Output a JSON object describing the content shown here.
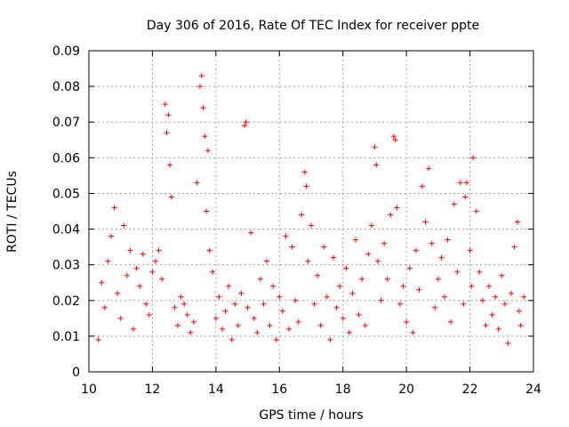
{
  "chart_data": {
    "type": "scatter",
    "title": "Day 306 of 2016, Rate Of TEC Index for receiver ppte",
    "xlabel": "GPS time / hours",
    "ylabel": "ROTI / TECUs",
    "xlim": [
      10,
      24
    ],
    "ylim": [
      0,
      0.09
    ],
    "xticks": [
      10,
      12,
      14,
      16,
      18,
      20,
      22,
      24
    ],
    "xtick_labels": [
      "10",
      "12",
      "14",
      "16",
      "18",
      "20",
      "22",
      "24"
    ],
    "yticks": [
      0,
      0.01,
      0.02,
      0.03,
      0.04,
      0.05,
      0.06,
      0.07,
      0.08,
      0.09
    ],
    "ytick_labels": [
      "0",
      "0.01",
      "0.02",
      "0.03",
      "0.04",
      "0.05",
      "0.06",
      "0.07",
      "0.08",
      "0.09"
    ],
    "grid": true,
    "marker": "plus",
    "color": "#ff0000",
    "series": [
      {
        "name": "ROTI",
        "x": [
          10.3,
          10.4,
          10.5,
          10.6,
          10.7,
          10.8,
          10.9,
          11.0,
          11.1,
          11.2,
          11.3,
          11.4,
          11.5,
          11.6,
          11.7,
          11.8,
          11.9,
          12.0,
          12.1,
          12.2,
          12.3,
          12.4,
          12.45,
          12.5,
          12.55,
          12.6,
          12.7,
          12.8,
          12.9,
          13.0,
          13.1,
          13.2,
          13.3,
          13.4,
          13.5,
          13.55,
          13.6,
          13.65,
          13.7,
          13.75,
          13.8,
          13.9,
          14.0,
          14.1,
          14.2,
          14.3,
          14.4,
          14.5,
          14.6,
          14.7,
          14.8,
          14.9,
          14.95,
          15.0,
          15.1,
          15.2,
          15.3,
          15.4,
          15.5,
          15.6,
          15.7,
          15.8,
          15.9,
          16.0,
          16.1,
          16.2,
          16.3,
          16.4,
          16.5,
          16.6,
          16.7,
          16.8,
          16.85,
          16.9,
          17.0,
          17.1,
          17.2,
          17.3,
          17.4,
          17.5,
          17.6,
          17.7,
          17.8,
          17.9,
          18.0,
          18.1,
          18.2,
          18.3,
          18.4,
          18.5,
          18.6,
          18.7,
          18.8,
          18.9,
          19.0,
          19.05,
          19.1,
          19.2,
          19.3,
          19.4,
          19.5,
          19.6,
          19.65,
          19.7,
          19.8,
          19.9,
          20.0,
          20.1,
          20.2,
          20.3,
          20.4,
          20.5,
          20.6,
          20.7,
          20.8,
          20.9,
          21.0,
          21.1,
          21.2,
          21.3,
          21.4,
          21.5,
          21.6,
          21.7,
          21.8,
          21.85,
          21.9,
          22.0,
          22.05,
          22.1,
          22.2,
          22.3,
          22.4,
          22.5,
          22.6,
          22.7,
          22.8,
          22.9,
          23.0,
          23.1,
          23.2,
          23.3,
          23.4,
          23.5,
          23.55,
          23.6,
          23.7
        ],
        "y": [
          0.009,
          0.025,
          0.018,
          0.031,
          0.038,
          0.046,
          0.022,
          0.015,
          0.041,
          0.027,
          0.034,
          0.012,
          0.029,
          0.024,
          0.033,
          0.019,
          0.016,
          0.028,
          0.031,
          0.034,
          0.026,
          0.075,
          0.067,
          0.072,
          0.058,
          0.049,
          0.018,
          0.013,
          0.021,
          0.019,
          0.016,
          0.011,
          0.014,
          0.053,
          0.08,
          0.083,
          0.074,
          0.066,
          0.045,
          0.062,
          0.034,
          0.028,
          0.015,
          0.021,
          0.012,
          0.017,
          0.024,
          0.009,
          0.019,
          0.013,
          0.022,
          0.069,
          0.07,
          0.018,
          0.039,
          0.015,
          0.011,
          0.026,
          0.019,
          0.031,
          0.013,
          0.024,
          0.009,
          0.021,
          0.017,
          0.038,
          0.012,
          0.035,
          0.02,
          0.014,
          0.044,
          0.056,
          0.052,
          0.031,
          0.041,
          0.019,
          0.027,
          0.013,
          0.035,
          0.021,
          0.009,
          0.032,
          0.018,
          0.024,
          0.015,
          0.029,
          0.011,
          0.022,
          0.037,
          0.016,
          0.026,
          0.013,
          0.033,
          0.041,
          0.063,
          0.058,
          0.031,
          0.02,
          0.036,
          0.026,
          0.044,
          0.066,
          0.065,
          0.046,
          0.019,
          0.024,
          0.014,
          0.029,
          0.011,
          0.034,
          0.023,
          0.052,
          0.042,
          0.057,
          0.036,
          0.018,
          0.026,
          0.032,
          0.021,
          0.037,
          0.014,
          0.047,
          0.028,
          0.053,
          0.019,
          0.049,
          0.053,
          0.034,
          0.024,
          0.06,
          0.045,
          0.028,
          0.02,
          0.013,
          0.024,
          0.016,
          0.021,
          0.012,
          0.027,
          0.019,
          0.008,
          0.022,
          0.035,
          0.042,
          0.017,
          0.013,
          0.021
        ]
      }
    ]
  }
}
